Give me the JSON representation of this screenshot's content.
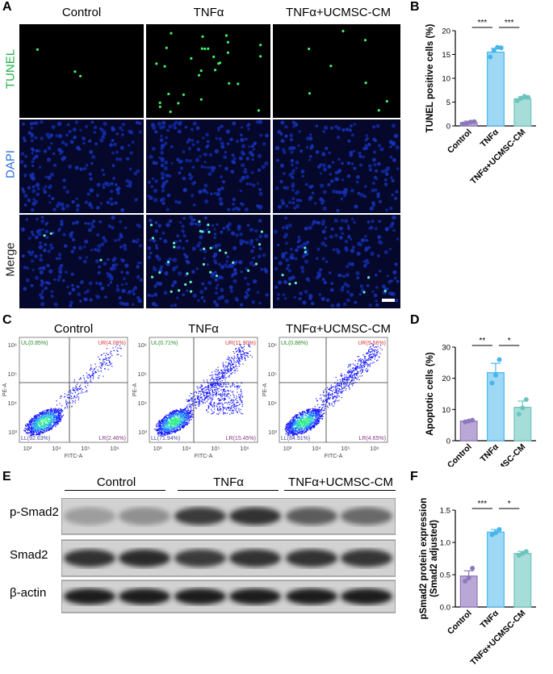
{
  "panels": {
    "a": "A",
    "b": "B",
    "c": "C",
    "d": "D",
    "e": "E",
    "f": "F"
  },
  "groups": [
    "Control",
    "TNFα",
    "TNFα+UCMSC-CM"
  ],
  "micro": {
    "rows": [
      "TUNEL",
      "DAPI",
      "Merge"
    ],
    "row_colors": [
      "#22b24a",
      "#2b6de0",
      "#222222"
    ]
  },
  "flow": {
    "titles": [
      "Control",
      "TNFα",
      "TNFα+UCMSC-CM"
    ],
    "quadrants": [
      {
        "ul": "UL(0.85%)",
        "ur": "UR(4.08%)",
        "ll": "LL(92.63%)",
        "lr": "LR(2.46%)"
      },
      {
        "ul": "UL(0.71%)",
        "ur": "UR(11.90%)",
        "ll": "LL(71.94%)",
        "lr": "LR(15.45%)"
      },
      {
        "ul": "UL(0.88%)",
        "ur": "UR(9.56%)",
        "ll": "LL(84.91%)",
        "lr": "LR(4.65%)"
      }
    ],
    "xlabel": "FITC-A",
    "ylabel": "PE-A",
    "x_ticks": [
      "10³",
      "10⁴",
      "10⁵",
      "10⁶"
    ],
    "y_ticks": [
      "10³",
      "10⁴",
      "10⁵",
      "10⁶"
    ]
  },
  "western": {
    "bands": [
      "p-Smad2",
      "Smad2",
      "β-actin"
    ]
  },
  "chart_data": [
    {
      "panel": "B",
      "type": "bar",
      "categories": [
        "Control",
        "TNFα",
        "TNFα+UCMSC-CM"
      ],
      "values": [
        0.7,
        15.5,
        5.7
      ],
      "errors": [
        0.3,
        0.8,
        0.4
      ],
      "points": [
        [
          0.4,
          0.6,
          0.8,
          0.9
        ],
        [
          14.5,
          15.8,
          16.5,
          16.4
        ],
        [
          5.3,
          5.8,
          6.2,
          6.0
        ]
      ],
      "ylabel": "TUNEL positive cells (%)",
      "ylim": [
        0,
        20
      ],
      "yticks": [
        "0",
        "5",
        "10",
        "15",
        "20"
      ],
      "colors": [
        "#b9a7d6",
        "#9fd8f5",
        "#a6ddd8"
      ],
      "edge_colors": [
        "#8d78bb",
        "#45b6ec",
        "#6cc4bd"
      ],
      "significance": [
        {
          "from": 0,
          "to": 1,
          "label": "***"
        },
        {
          "from": 1,
          "to": 2,
          "label": "***"
        }
      ]
    },
    {
      "panel": "D",
      "type": "bar",
      "categories": [
        "Control",
        "TNFα",
        "TNFα+UCMSC-CM"
      ],
      "values": [
        6.3,
        21.8,
        10.7
      ],
      "errors": [
        0.3,
        3.0,
        2.0
      ],
      "points": [
        [
          6.0,
          6.3,
          6.6
        ],
        [
          18.5,
          21.0,
          26.0
        ],
        [
          8.5,
          10.5,
          13.2
        ]
      ],
      "ylabel": "Apoptotic cells (%)",
      "ylim": [
        0,
        30
      ],
      "yticks": [
        "0",
        "10",
        "20",
        "30"
      ],
      "colors": [
        "#b9a7d6",
        "#9fd8f5",
        "#a6ddd8"
      ],
      "edge_colors": [
        "#8d78bb",
        "#45b6ec",
        "#6cc4bd"
      ],
      "significance": [
        {
          "from": 0,
          "to": 1,
          "label": "**"
        },
        {
          "from": 1,
          "to": 2,
          "label": "*"
        }
      ]
    },
    {
      "panel": "F",
      "type": "bar",
      "categories": [
        "Control",
        "TNFα",
        "TNFα+UCMSC-CM"
      ],
      "values": [
        0.48,
        1.16,
        0.83
      ],
      "errors": [
        0.08,
        0.04,
        0.03
      ],
      "points": [
        [
          0.4,
          0.45,
          0.6
        ],
        [
          1.12,
          1.15,
          1.2
        ],
        [
          0.8,
          0.83,
          0.86
        ]
      ],
      "ylabel": "pSmad2 protein expression\n(Smad2 adjusted)",
      "ylim": [
        0,
        1.5
      ],
      "yticks": [
        "0.0",
        "0.5",
        "1.0",
        "1.5"
      ],
      "colors": [
        "#b9a7d6",
        "#9fd8f5",
        "#a6ddd8"
      ],
      "edge_colors": [
        "#8d78bb",
        "#45b6ec",
        "#6cc4bd"
      ],
      "significance": [
        {
          "from": 0,
          "to": 1,
          "label": "***"
        },
        {
          "from": 1,
          "to": 2,
          "label": "*"
        }
      ]
    }
  ]
}
